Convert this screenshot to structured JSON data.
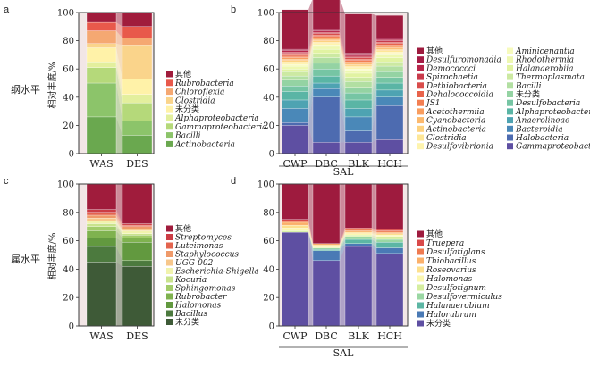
{
  "chart_data": [
    {
      "type": "bar",
      "stacked": true,
      "panel": "a",
      "row_label": "纲水平",
      "ylabel": "相对丰度/%",
      "ylim": [
        0,
        100
      ],
      "yticks": [
        0,
        20,
        40,
        60,
        80,
        100
      ],
      "categories": [
        "WAS",
        "DES"
      ],
      "series": [
        {
          "name": "Actinobacteria",
          "color": "#6aa84f",
          "values": [
            26,
            13
          ]
        },
        {
          "name": "Bacilli",
          "color": "#8cc46a",
          "values": [
            24,
            10
          ]
        },
        {
          "name": "Gammaproteobacteria",
          "color": "#b5d97a",
          "values": [
            11,
            13
          ]
        },
        {
          "name": "Alphaproteobacteria",
          "color": "#e3ef9d",
          "values": [
            4,
            6
          ]
        },
        {
          "name": "未分类",
          "color": "#fff2a8",
          "values": [
            10,
            11
          ]
        },
        {
          "name": "Clostridia",
          "color": "#fad48b",
          "values": [
            3,
            24
          ]
        },
        {
          "name": "Chloroflexia",
          "color": "#f5a872",
          "values": [
            9,
            5
          ]
        },
        {
          "name": "Rubrobacteria",
          "color": "#e8594b",
          "values": [
            6,
            8
          ]
        },
        {
          "name": "其他",
          "color": "#a01c3c",
          "values": [
            7,
            10
          ]
        }
      ],
      "legend_order": [
        "其他",
        "Rubrobacteria",
        "Chloroflexia",
        "Clostridia",
        "未分类",
        "Alphaproteobacteria",
        "Gammaproteobacteria",
        "Bacilli",
        "Actinobacteria"
      ]
    },
    {
      "type": "bar",
      "stacked": true,
      "panel": "b",
      "group_label": "SAL",
      "ylim": [
        0,
        100
      ],
      "yticks": [
        0,
        20,
        40,
        60,
        80,
        100
      ],
      "categories": [
        "CWP",
        "DBC",
        "BLK",
        "HCH"
      ],
      "series": [
        {
          "name": "Gammaproteobacteria",
          "color": "#5e4fa2",
          "values": [
            20,
            8,
            8,
            10
          ]
        },
        {
          "name": "Halobacteria",
          "color": "#4d6bb0",
          "values": [
            2,
            32,
            8,
            24
          ]
        },
        {
          "name": "Bacteroidia",
          "color": "#4a88b8",
          "values": [
            10,
            6,
            10,
            6
          ]
        },
        {
          "name": "Anaerolineae",
          "color": "#4ea3b2",
          "values": [
            6,
            4,
            6,
            5
          ]
        },
        {
          "name": "Alphaproteobacteria",
          "color": "#5ab5a5",
          "values": [
            6,
            5,
            6,
            5
          ]
        },
        {
          "name": "Desulfobacteria",
          "color": "#76c5a4",
          "values": [
            4,
            5,
            5,
            4
          ]
        },
        {
          "name": "未分类",
          "color": "#94d3a3",
          "values": [
            4,
            4,
            4,
            4
          ]
        },
        {
          "name": "Bacilli",
          "color": "#b2dfa2",
          "values": [
            3,
            4,
            4,
            4
          ]
        },
        {
          "name": "Thermoplasmata",
          "color": "#cce9a2",
          "values": [
            3,
            3,
            3,
            3
          ]
        },
        {
          "name": "Halanaerobiia",
          "color": "#e1f3a2",
          "values": [
            2,
            3,
            3,
            3
          ]
        },
        {
          "name": "Rhodothermia",
          "color": "#eef8b1",
          "values": [
            2,
            2,
            2,
            2
          ]
        },
        {
          "name": "Aminicenantia",
          "color": "#f7fbbd",
          "values": [
            1,
            1,
            1,
            1
          ]
        },
        {
          "name": "Desulfovibrionia",
          "color": "#fef4ae",
          "values": [
            1,
            1,
            1,
            1
          ]
        },
        {
          "name": "Clostridia",
          "color": "#fee797",
          "values": [
            1,
            1,
            1,
            1
          ]
        },
        {
          "name": "Actinobacteria",
          "color": "#fdd280",
          "values": [
            1,
            1,
            1,
            1
          ]
        },
        {
          "name": "Cyanobacteria",
          "color": "#fcb96e",
          "values": [
            1,
            1,
            1,
            1
          ]
        },
        {
          "name": "Acetothermiia",
          "color": "#f99d5f",
          "values": [
            1,
            1,
            1,
            1
          ]
        },
        {
          "name": "JS1",
          "color": "#f37f52",
          "values": [
            1,
            1,
            1,
            1
          ]
        },
        {
          "name": "Dehalococcoidia",
          "color": "#e8634b",
          "values": [
            1,
            1,
            1,
            1
          ]
        },
        {
          "name": "Dethiobacteria",
          "color": "#d94d4b",
          "values": [
            1,
            1,
            1,
            1
          ]
        },
        {
          "name": "Spirochaetia",
          "color": "#c93a4b",
          "values": [
            1,
            1,
            1,
            1
          ]
        },
        {
          "name": "Demococcci",
          "color": "#b8264a",
          "values": [
            1,
            1,
            1,
            1
          ]
        },
        {
          "name": "Desulfuromonadia",
          "color": "#a51c45",
          "values": [
            1,
            1,
            1,
            1
          ]
        },
        {
          "name": "其他",
          "color": "#9e1b3e",
          "values": [
            28,
            22,
            28,
            16
          ]
        }
      ],
      "legend_col1": [
        "其他",
        "Desulfuromonadia",
        "Demococcci",
        "Spirochaetia",
        "Dethiobacteria",
        "Dehalococcoidia",
        "JS1",
        "Acetothermiia",
        "Cyanobacteria",
        "Actinobacteria",
        "Clostridia",
        "Desulfovibrionia"
      ],
      "legend_col2": [
        "Aminicenantia",
        "Rhodothermia",
        "Halanaerobiia",
        "Thermoplasmata",
        "Bacilli",
        "未分类",
        "Desulfobacteria",
        "Alphaproteobacteria",
        "Anaerolineae",
        "Bacteroidia",
        "Halobacteria",
        "Gammaproteobacteria"
      ]
    },
    {
      "type": "bar",
      "stacked": true,
      "panel": "c",
      "row_label": "属水平",
      "ylabel": "相对丰度/%",
      "ylim": [
        0,
        100
      ],
      "yticks": [
        0,
        20,
        40,
        60,
        80,
        100
      ],
      "categories": [
        "WAS",
        "DES"
      ],
      "series": [
        {
          "name": "未分类",
          "color": "#3e5a37",
          "values": [
            45,
            42
          ]
        },
        {
          "name": "Bacillus",
          "color": "#4c7a3e",
          "values": [
            11,
            4
          ]
        },
        {
          "name": "Halomonas",
          "color": "#62993f",
          "values": [
            6,
            13
          ]
        },
        {
          "name": "Rubrobacter",
          "color": "#7fb24f",
          "values": [
            5,
            3
          ]
        },
        {
          "name": "Sphingomonas",
          "color": "#a3cc6a",
          "values": [
            3,
            2
          ]
        },
        {
          "name": "Kocuria",
          "color": "#c9e38d",
          "values": [
            2,
            1
          ]
        },
        {
          "name": "Escherichia-Shigella",
          "color": "#f1f3ad",
          "values": [
            2,
            2
          ]
        },
        {
          "name": "UGG-002",
          "color": "#f7c78b",
          "values": [
            2,
            1
          ]
        },
        {
          "name": "Staphylococcus",
          "color": "#ef9a6a",
          "values": [
            2,
            2
          ]
        },
        {
          "name": "Luteimonas",
          "color": "#e3644e",
          "values": [
            2,
            1
          ]
        },
        {
          "name": "Streptomyces",
          "color": "#cc3d45",
          "values": [
            2,
            1
          ]
        },
        {
          "name": "其他",
          "color": "#a01c3c",
          "values": [
            18,
            28
          ]
        }
      ],
      "legend_order": [
        "其他",
        "Streptomyces",
        "Luteimonas",
        "Staphylococcus",
        "UGG-002",
        "Escherichia-Shigella",
        "Kocuria",
        "Sphingomonas",
        "Rubrobacter",
        "Halomonas",
        "Bacillus",
        "未分类"
      ]
    },
    {
      "type": "bar",
      "stacked": true,
      "panel": "d",
      "group_label": "SAL",
      "ylim": [
        0,
        100
      ],
      "yticks": [
        0,
        20,
        40,
        60,
        80,
        100
      ],
      "categories": [
        "CWP",
        "DBC",
        "BLK",
        "HCH"
      ],
      "series": [
        {
          "name": "未分类",
          "color": "#5e4fa2",
          "values": [
            66,
            46,
            56,
            51
          ]
        },
        {
          "name": "Halorubrum",
          "color": "#4a7ab5",
          "values": [
            0,
            7,
            2,
            4
          ]
        },
        {
          "name": "Halanaerobium",
          "color": "#5cb6a4",
          "values": [
            0,
            1,
            3,
            4
          ]
        },
        {
          "name": "Desulfovermiculus",
          "color": "#9ad7a3",
          "values": [
            0,
            1,
            2,
            2
          ]
        },
        {
          "name": "Desulfotignum",
          "color": "#d5ee9f",
          "values": [
            1,
            0,
            1,
            2
          ]
        },
        {
          "name": "Halomonas",
          "color": "#fbf7b0",
          "values": [
            2,
            1,
            1,
            1
          ]
        },
        {
          "name": "Roseovarius",
          "color": "#fde08e",
          "values": [
            2,
            1,
            1,
            1
          ]
        },
        {
          "name": "Thiobacillus",
          "color": "#fbb06a",
          "values": [
            2,
            1,
            1,
            1
          ]
        },
        {
          "name": "Desulfatiglans",
          "color": "#ef7a50",
          "values": [
            1,
            0,
            1,
            1
          ]
        },
        {
          "name": "Truepera",
          "color": "#d94a4a",
          "values": [
            1,
            0,
            1,
            1
          ]
        },
        {
          "name": "其他",
          "color": "#9e1b3e",
          "values": [
            25,
            42,
            31,
            32
          ]
        }
      ],
      "legend_order": [
        "其他",
        "Truepera",
        "Desulfatiglans",
        "Thiobacillus",
        "Roseovarius",
        "Halomonas",
        "Desulfotignum",
        "Desulfovermiculus",
        "Halanaerobium",
        "Halorubrum",
        "未分类"
      ]
    }
  ],
  "panel_letters": {
    "a": "a",
    "b": "b",
    "c": "c",
    "d": "d"
  },
  "row_labels": {
    "class": "纲水平",
    "genus": "属水平"
  }
}
